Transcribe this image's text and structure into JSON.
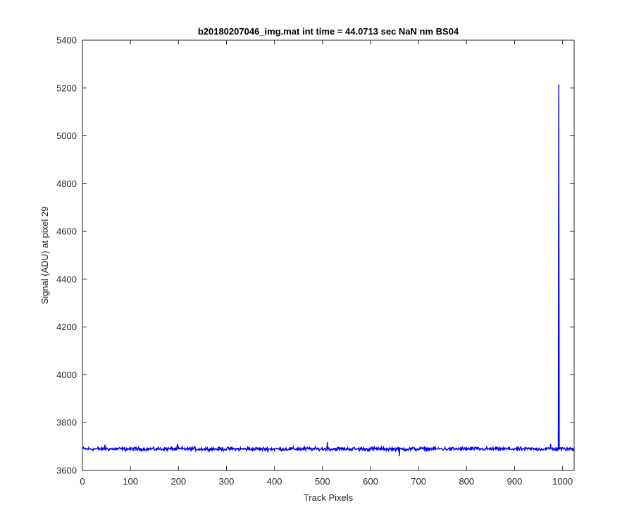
{
  "chart_data": {
    "type": "line",
    "title": "b20180207046_img.mat int time = 44.0713 sec  NaN nm BS04",
    "xlabel": "Track Pixels",
    "ylabel": "Signal (ADU) at pixel 29",
    "xlim": [
      0,
      1024
    ],
    "ylim": [
      3600,
      5400
    ],
    "xticks": [
      0,
      100,
      200,
      300,
      400,
      500,
      600,
      700,
      800,
      900,
      1000
    ],
    "yticks": [
      3600,
      3800,
      4000,
      4200,
      4400,
      4600,
      4800,
      5000,
      5200,
      5400
    ],
    "grid": false,
    "series": [
      {
        "color": "#0000ff",
        "baseline": 3690,
        "noise_amplitude": 12,
        "x_start": 1,
        "x_end": 1024,
        "spikes": [
          {
            "x": 992,
            "y": 5215
          },
          {
            "x": 994,
            "y": 3692
          }
        ],
        "notable_points": [
          {
            "x": 47,
            "y": 3708
          },
          {
            "x": 198,
            "y": 3712
          },
          {
            "x": 510,
            "y": 3718
          },
          {
            "x": 660,
            "y": 3660
          },
          {
            "x": 975,
            "y": 3712
          }
        ]
      }
    ]
  }
}
